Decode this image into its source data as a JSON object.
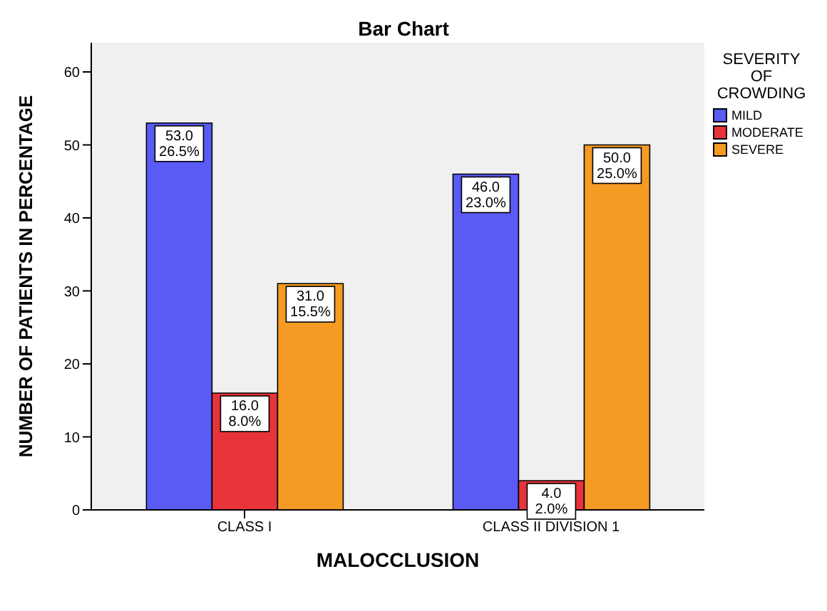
{
  "chart_data": {
    "type": "bar",
    "title": "Bar Chart",
    "xlabel": "MALOCCLUSION",
    "ylabel": "NUMBER OF PATIENTS IN PERCENTAGE",
    "legend_title": "SEVERITY OF CROWDING",
    "categories": [
      "CLASS I",
      "CLASS II DIVISION 1"
    ],
    "series": [
      {
        "name": "MILD",
        "color": "#5a5af5",
        "values": [
          53,
          46
        ],
        "value_labels": [
          "53.0\n26.5%",
          "46.0\n23.0%"
        ]
      },
      {
        "name": "MODERATE",
        "color": "#e8333b",
        "values": [
          16,
          4
        ],
        "value_labels": [
          "16.0\n8.0%",
          "4.0\n2.0%"
        ]
      },
      {
        "name": "SEVERE",
        "color": "#f59a23",
        "values": [
          31,
          50
        ],
        "value_labels": [
          "31.0\n15.5%",
          "50.0\n25.0%"
        ]
      }
    ],
    "ylim": [
      0,
      64
    ],
    "yticks": [
      0,
      10,
      20,
      30,
      40,
      50,
      60
    ],
    "legend": "top right"
  }
}
